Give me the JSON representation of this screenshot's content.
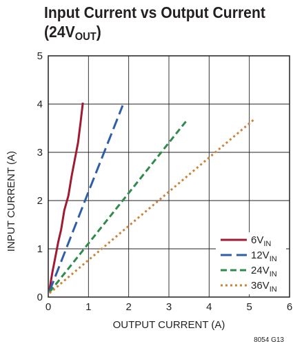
{
  "chart_data": {
    "type": "line",
    "title": {
      "line1": "Input Current vs Output Current",
      "line2_main": "(24V",
      "line2_sub": "OUT",
      "line2_end": ")"
    },
    "xlabel": "OUTPUT CURRENT (A)",
    "ylabel": "INPUT CURRENT (A)",
    "xlim": [
      0,
      6
    ],
    "ylim": [
      0,
      5
    ],
    "xticks": [
      "0",
      "1",
      "2",
      "3",
      "4",
      "5",
      "6"
    ],
    "yticks": [
      "0",
      "1",
      "2",
      "3",
      "4",
      "5"
    ],
    "grid": true,
    "legend_position": "bottom-right",
    "figure_id": "8054 G13",
    "series": [
      {
        "name": "6V",
        "name_sub": "IN",
        "color": "#9e1b32",
        "dash": "solid",
        "points": [
          [
            0.03,
            0.15
          ],
          [
            0.1,
            0.5
          ],
          [
            0.17,
            0.8
          ],
          [
            0.25,
            1.15
          ],
          [
            0.32,
            1.4
          ],
          [
            0.4,
            1.8
          ],
          [
            0.5,
            2.1
          ],
          [
            0.58,
            2.5
          ],
          [
            0.66,
            2.85
          ],
          [
            0.74,
            3.2
          ],
          [
            0.8,
            3.6
          ],
          [
            0.86,
            4.03
          ]
        ]
      },
      {
        "name": "12V",
        "name_sub": "IN",
        "color": "#2e5ea8",
        "dash": "long",
        "points": [
          [
            0.03,
            0.12
          ],
          [
            1.0,
            2.18
          ],
          [
            1.85,
            3.97
          ]
        ]
      },
      {
        "name": "24V",
        "name_sub": "IN",
        "color": "#2e8b4a",
        "dash": "medium",
        "points": [
          [
            0.03,
            0.1
          ],
          [
            3.45,
            3.67
          ]
        ]
      },
      {
        "name": "36V",
        "name_sub": "IN",
        "color": "#c8843a",
        "dash": "dotted",
        "points": [
          [
            0.03,
            0.08
          ],
          [
            5.1,
            3.67
          ]
        ]
      }
    ]
  }
}
